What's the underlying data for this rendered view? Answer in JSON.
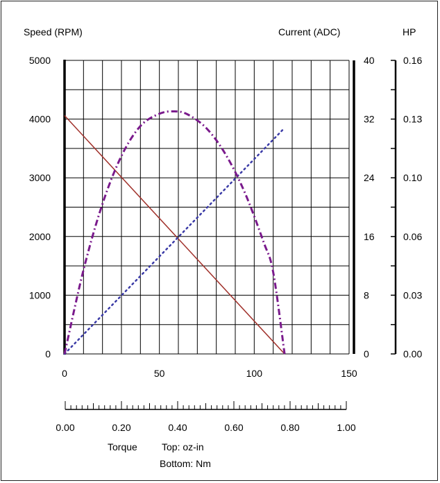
{
  "chart_data": {
    "type": "line",
    "labels": {
      "left_axis": "Speed (RPM)",
      "mid_axis": "Current (ADC)",
      "right_axis": "HP",
      "torque_label": "Torque",
      "top_unit": "Top: oz-in",
      "bottom_unit": "Bottom: Nm"
    },
    "x_top": {
      "ticks": [
        "0",
        "50",
        "100",
        "150"
      ],
      "ticks_values": [
        0,
        50,
        100,
        150
      ],
      "range": [
        0,
        150
      ]
    },
    "x_bottom": {
      "ticks": [
        "0.00",
        "0.20",
        "0.40",
        "0.60",
        "0.80",
        "1.00"
      ],
      "ticks_values": [
        0,
        0.2,
        0.4,
        0.6,
        0.8,
        1.0
      ]
    },
    "y_left": {
      "ticks": [
        "0",
        "1000",
        "2000",
        "3000",
        "4000",
        "5000"
      ],
      "ticks_values": [
        0,
        1000,
        2000,
        3000,
        4000,
        5000
      ],
      "range": [
        0,
        5000
      ]
    },
    "y_current": {
      "ticks": [
        "0",
        "8",
        "16",
        "24",
        "32",
        "40"
      ],
      "ticks_values": [
        0,
        8,
        16,
        24,
        32,
        40
      ],
      "range": [
        0,
        40
      ]
    },
    "y_hp": {
      "ticks": [
        "0.00",
        "0.03",
        "0.06",
        "0.10",
        "0.13",
        "0.16"
      ],
      "ticks_values": [
        0,
        0.032,
        0.064,
        0.096,
        0.128,
        0.16
      ],
      "range": [
        0,
        0.16
      ]
    },
    "grid": true,
    "series": [
      {
        "axis": "speed",
        "color": "#a0302a",
        "style": "solid",
        "x": [
          0,
          116
        ],
        "y": [
          4060,
          0
        ]
      },
      {
        "axis": "current",
        "color": "#3a3aa6",
        "style": "dotted",
        "x": [
          0,
          116
        ],
        "y": [
          0,
          30.8
        ]
      },
      {
        "axis": "hp",
        "color": "#7a1a8c",
        "style": "dashdot",
        "x": [
          0,
          10,
          20,
          30,
          40,
          50,
          58,
          65,
          75,
          85,
          95,
          105,
          110,
          116
        ],
        "y": [
          0,
          0.0458,
          0.0818,
          0.1079,
          0.1242,
          0.1309,
          0.1322,
          0.1305,
          0.1228,
          0.1086,
          0.088,
          0.0608,
          0.0445,
          0
        ]
      }
    ]
  }
}
